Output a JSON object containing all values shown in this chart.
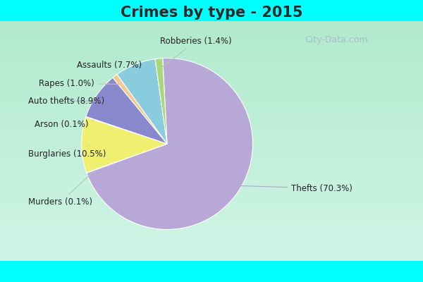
{
  "title": "Crimes by type - 2015",
  "title_fontsize": 15,
  "title_fontweight": "bold",
  "title_color": "#2a2a2a",
  "sizes_ordered": [
    70.3,
    0.1,
    10.5,
    0.1,
    8.9,
    1.0,
    7.7,
    1.4
  ],
  "colors_ordered": [
    "#b8a8d8",
    "#80cbc4",
    "#f0f070",
    "#f4a0a0",
    "#8888cc",
    "#f5c890",
    "#88ccdd",
    "#a8d878"
  ],
  "labels_ordered": [
    "Thefts (70.3%)",
    "Murders (0.1%)",
    "Burglaries (10.5%)",
    "Arson (0.1%)",
    "Auto thefts (8.9%)",
    "Rapes (1.0%)",
    "Assaults (7.7%)",
    "Robberies (1.4%)"
  ],
  "startangle": 93,
  "background_top": "#00ffff",
  "background_main_top": "#d8eed8",
  "background_main_bottom": "#e8f4e0",
  "label_fontsize": 8.5,
  "label_color": "#222222",
  "watermark": "City-Data.com",
  "watermark_color": "#aabbcc",
  "watermark_fontsize": 9,
  "top_bar_height": 0.075,
  "bottom_bar_height": 0.075
}
